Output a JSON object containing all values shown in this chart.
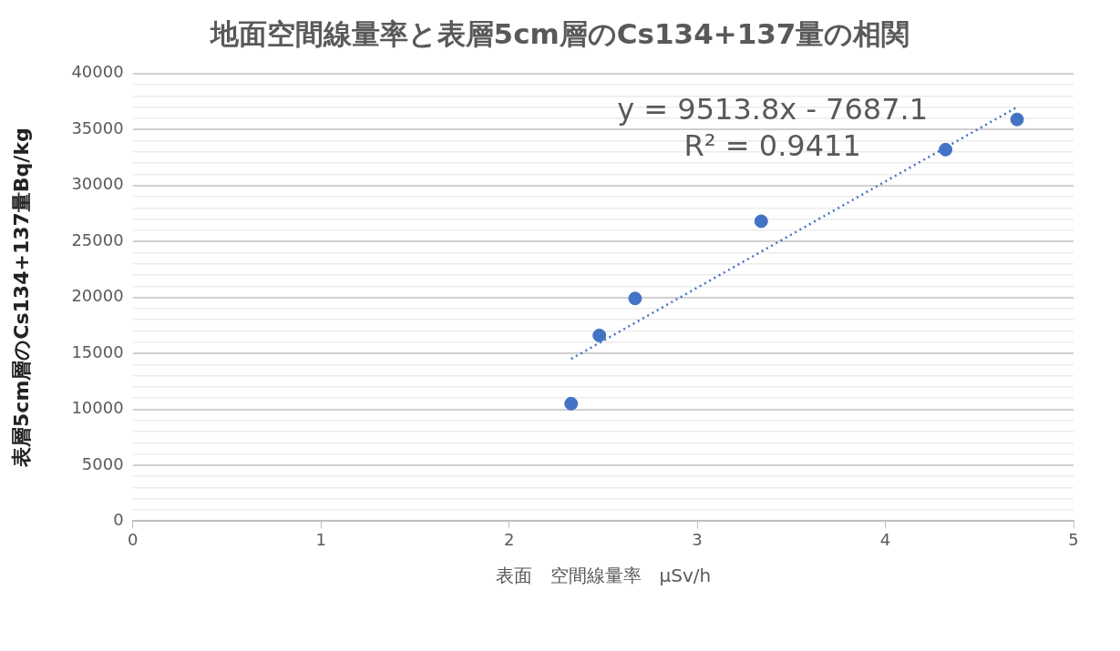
{
  "chart_data": {
    "type": "scatter",
    "title": "地面空間線量率と表層5cm層のCs134+137量の相関",
    "xlabel": "表面　空間線量率　μSv/h",
    "ylabel": "表層5cm層のCs134+137量Bq/kg",
    "series": [
      {
        "color": "#4472c4",
        "marker": "circle",
        "x": [
          2.33,
          2.48,
          2.67,
          3.34,
          4.32,
          4.7
        ],
        "values": [
          10500,
          16600,
          19900,
          26800,
          33200,
          35900
        ]
      },
      {
        "type": "line",
        "color": "#4472c4",
        "line_style": "dotted",
        "marker": "none",
        "x": [
          2.33,
          4.7
        ],
        "values": [
          14500,
          37000
        ]
      }
    ],
    "annotations": [
      "y = 9513.8x - 7687.1",
      "R² = 0.9411"
    ],
    "xlim": [
      0,
      5
    ],
    "xticks": [
      0,
      1,
      2,
      3,
      4,
      5
    ],
    "ylim": [
      0,
      40000
    ],
    "yticks": [
      0,
      {
        "value": 1000,
        "label": null
      },
      {
        "value": 2000,
        "label": null
      },
      {
        "value": 3000,
        "label": null
      },
      {
        "value": 4000,
        "label": null
      },
      5000,
      {
        "value": 6000,
        "label": null
      },
      {
        "value": 7000,
        "label": null
      },
      {
        "value": 8000,
        "label": null
      },
      {
        "value": 9000,
        "label": null
      },
      10000,
      {
        "value": 11000,
        "label": null
      },
      {
        "value": 12000,
        "label": null
      },
      {
        "value": 13000,
        "label": null
      },
      {
        "value": 14000,
        "label": null
      },
      15000,
      {
        "value": 16000,
        "label": null
      },
      {
        "value": 17000,
        "label": null
      },
      {
        "value": 18000,
        "label": null
      },
      {
        "value": 19000,
        "label": null
      },
      20000,
      {
        "value": 21000,
        "label": null
      },
      {
        "value": 22000,
        "label": null
      },
      {
        "value": 23000,
        "label": null
      },
      {
        "value": 24000,
        "label": null
      },
      25000,
      {
        "value": 26000,
        "label": null
      },
      {
        "value": 27000,
        "label": null
      },
      {
        "value": 28000,
        "label": null
      },
      {
        "value": 29000,
        "label": null
      },
      30000,
      {
        "value": 31000,
        "label": null
      },
      {
        "value": 32000,
        "label": null
      },
      {
        "value": 33000,
        "label": null
      },
      {
        "value": 34000,
        "label": null
      },
      35000,
      {
        "value": 36000,
        "label": null
      },
      {
        "value": 37000,
        "label": null
      },
      {
        "value": 38000,
        "label": null
      },
      {
        "value": 39000,
        "label": null
      },
      40000
    ],
    "grid": "y",
    "legend": false
  }
}
